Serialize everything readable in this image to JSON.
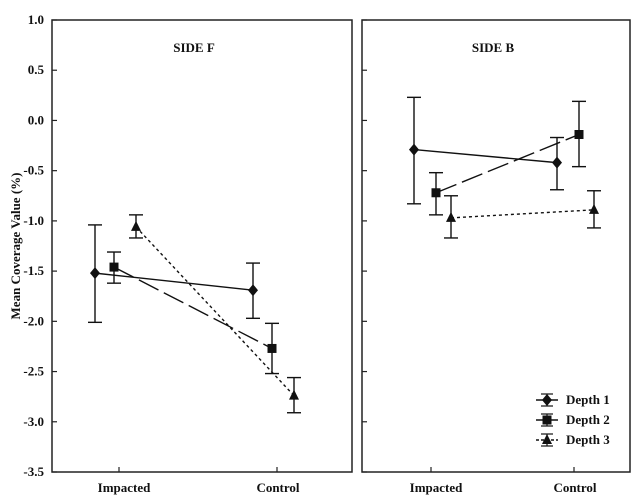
{
  "chart_data": {
    "type": "line",
    "ylabel": "Mean Coverage Value (%)",
    "ylim": [
      -3.5,
      1.0
    ],
    "yticks": [
      "1.0",
      "0.5",
      "0.0",
      "-0.5",
      "-1.0",
      "-1.5",
      "-2.0",
      "-2.5",
      "-3.0",
      "-3.5"
    ],
    "ytick_values": [
      1.0,
      0.5,
      0.0,
      -0.5,
      -1.0,
      -1.5,
      -2.0,
      -2.5,
      -3.0,
      -3.5
    ],
    "categories": [
      "Impacted",
      "Control"
    ],
    "legend_position": "bottom-right",
    "legend": [
      {
        "name": "Depth 1",
        "marker": "diamond",
        "dash": "solid"
      },
      {
        "name": "Depth 2",
        "marker": "square",
        "dash": "longdash"
      },
      {
        "name": "Depth 3",
        "marker": "triangle",
        "dash": "dotted"
      }
    ],
    "panels": [
      {
        "title": "SIDE F",
        "series": [
          {
            "name": "Depth 1",
            "values": [
              -1.52,
              -1.69
            ],
            "err_low": [
              -2.01,
              -1.97
            ],
            "err_high": [
              -1.04,
              -1.42
            ]
          },
          {
            "name": "Depth 2",
            "values": [
              -1.46,
              -2.27
            ],
            "err_low": [
              -1.62,
              -2.52
            ],
            "err_high": [
              -1.31,
              -2.02
            ]
          },
          {
            "name": "Depth 3",
            "values": [
              -1.06,
              -2.74
            ],
            "err_low": [
              -1.17,
              -2.91
            ],
            "err_high": [
              -0.94,
              -2.56
            ]
          }
        ]
      },
      {
        "title": "SIDE B",
        "series": [
          {
            "name": "Depth 1",
            "values": [
              -0.29,
              -0.42
            ],
            "err_low": [
              -0.83,
              -0.69
            ],
            "err_high": [
              0.23,
              -0.17
            ]
          },
          {
            "name": "Depth 2",
            "values": [
              -0.72,
              -0.14
            ],
            "err_low": [
              -0.94,
              -0.46
            ],
            "err_high": [
              -0.52,
              0.19
            ]
          },
          {
            "name": "Depth 3",
            "values": [
              -0.97,
              -0.89
            ],
            "err_low": [
              -1.17,
              -1.07
            ],
            "err_high": [
              -0.75,
              -0.7
            ]
          }
        ]
      }
    ]
  }
}
